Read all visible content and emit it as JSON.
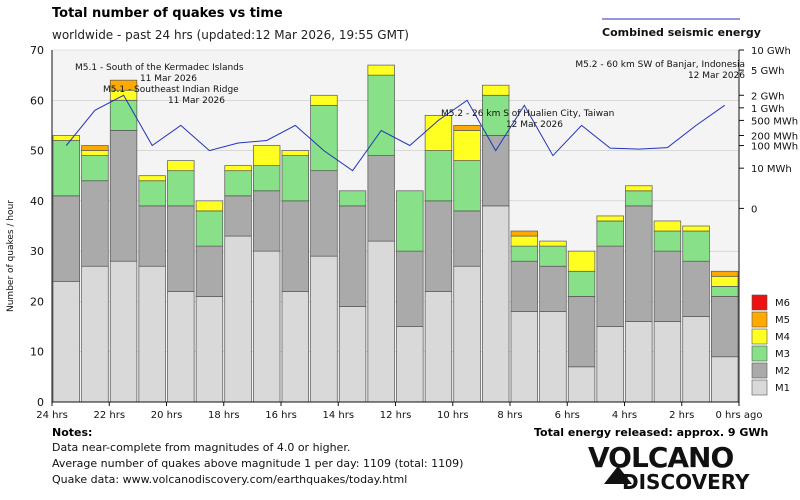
{
  "title": "Total number of quakes vs time",
  "subtitle": "worldwide - past 24 hrs (updated:12 Mar 2026, 19:55 GMT)",
  "legend_line_label": "Combined seismic energy",
  "notes": {
    "title": "Notes:",
    "lines": [
      "Data near-complete from magnitudes of 4.0 or higher.",
      "Average number of quakes above magnitude 1 per day: 1109 (total: 1109)",
      "Quake data: www.volcanodiscovery.com/earthquakes/today.html"
    ]
  },
  "total_energy": "Total energy released: approx. 9 GWh",
  "brand": {
    "line1": "VOLCANO",
    "line2": "DISCOVERY"
  },
  "chart_data": {
    "type": "bar",
    "stacked": true,
    "title": "Total number of quakes vs time",
    "ylabel": "Number of quakes / hour",
    "ylim": [
      0,
      70
    ],
    "yticks": [
      0,
      10,
      20,
      30,
      40,
      50,
      60,
      70
    ],
    "y2label": "Combined seismic energy",
    "y2ticks": [
      "10 GWh",
      "5 GWh",
      "2 GWh",
      "1 GWh",
      "500 MWh",
      "200 MWh",
      "100 MWh",
      "10 MWh",
      "0"
    ],
    "y2tick_levels": [
      70,
      66,
      61,
      58.5,
      56,
      53,
      51,
      46.5,
      38.5
    ],
    "xtick_labels": [
      "24 hrs",
      "22 hrs",
      "20 hrs",
      "18 hrs",
      "16 hrs",
      "14 hrs",
      "12 hrs",
      "10 hrs",
      "8 hrs",
      "6 hrs",
      "4 hrs",
      "2 hrs",
      "0 hrs ago"
    ],
    "xtick_hours": [
      24,
      22,
      20,
      18,
      16,
      14,
      12,
      10,
      8,
      6,
      4,
      2,
      0
    ],
    "series": [
      {
        "name": "M1",
        "color": "#d9d9d9",
        "values": [
          24,
          27,
          28,
          27,
          22,
          21,
          33,
          30,
          22,
          29,
          19,
          32,
          15,
          22,
          27,
          39,
          18,
          18,
          7,
          15,
          16,
          16,
          17,
          9
        ]
      },
      {
        "name": "M2",
        "color": "#aaaaaa",
        "values": [
          17,
          17,
          26,
          12,
          17,
          10,
          8,
          12,
          18,
          17,
          20,
          17,
          15,
          18,
          11,
          14,
          10,
          9,
          14,
          16,
          23,
          14,
          11,
          12
        ]
      },
      {
        "name": "M3",
        "color": "#88e088",
        "values": [
          11,
          5,
          6,
          5,
          7,
          7,
          5,
          5,
          9,
          13,
          3,
          16,
          12,
          10,
          10,
          8,
          3,
          4,
          5,
          5,
          3,
          4,
          6,
          2
        ]
      },
      {
        "name": "M4",
        "color": "#ffff22",
        "values": [
          1,
          1,
          2,
          1,
          2,
          2,
          1,
          4,
          1,
          2,
          0,
          2,
          0,
          7,
          6,
          2,
          2,
          1,
          4,
          1,
          1,
          2,
          1,
          2
        ]
      },
      {
        "name": "M5",
        "color": "#ffaa00",
        "values": [
          0,
          1,
          2,
          0,
          0,
          0,
          0,
          0,
          0,
          0,
          0,
          0,
          0,
          0,
          1,
          0,
          1,
          0,
          0,
          0,
          0,
          0,
          0,
          1
        ]
      },
      {
        "name": "M6",
        "color": "#ee1111",
        "values": [
          0,
          0,
          0,
          0,
          0,
          0,
          0,
          0,
          0,
          0,
          0,
          0,
          0,
          0,
          0,
          0,
          0,
          0,
          0,
          0,
          0,
          0,
          0,
          0
        ]
      }
    ],
    "energy_line": {
      "name": "Combined seismic energy",
      "color": "#2233bb",
      "values": [
        51,
        58,
        61,
        51,
        55,
        50,
        51.5,
        52,
        55,
        50,
        46,
        54,
        51,
        56,
        60,
        50,
        59,
        49,
        55,
        50.5,
        50.3,
        50.6,
        55,
        59
      ]
    },
    "annotations": [
      {
        "text": "M5.1 - South of the Kermadec Islands",
        "date": "11 Mar 2026",
        "align": "left"
      },
      {
        "text": "M5.1 - Southeast Indian Ridge",
        "date": "11 Mar 2026",
        "align": "left"
      },
      {
        "text": "M5.2 - 26 km S of Hualien City, Taiwan",
        "date": "12 Mar 2026",
        "align": "left"
      },
      {
        "text": "M5.2 - 60 km SW of Banjar, Indonesia",
        "date": "12 Mar 2026",
        "align": "right"
      }
    ],
    "legend": [
      "M6",
      "M5",
      "M4",
      "M3",
      "M2",
      "M1"
    ],
    "legend_position": "right"
  }
}
